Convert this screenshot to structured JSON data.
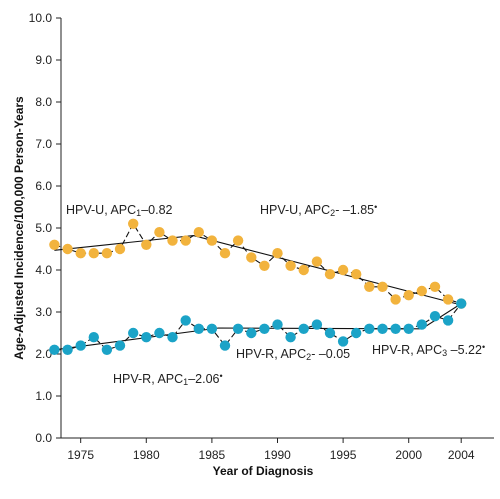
{
  "chart_data": {
    "type": "line",
    "xlabel": "Year of Diagnosis",
    "ylabel": "Age-Adjusted Incidence/100,000 Person-Years",
    "xlim": [
      1973.5,
      2006.5
    ],
    "ylim": [
      0,
      10
    ],
    "xticks": [
      1975,
      1980,
      1985,
      1990,
      1995,
      2000,
      2004
    ],
    "yticks": [
      "0.0",
      "1.0",
      "2.0",
      "3.0",
      "4.0",
      "5.0",
      "6.0",
      "7.0",
      "8.0",
      "9.0",
      "10.0"
    ],
    "grid": false,
    "x": [
      1973,
      1974,
      1975,
      1976,
      1977,
      1978,
      1979,
      1980,
      1981,
      1982,
      1983,
      1984,
      1985,
      1986,
      1987,
      1988,
      1989,
      1990,
      1991,
      1992,
      1993,
      1994,
      1995,
      1996,
      1997,
      1998,
      1999,
      2000,
      2001,
      2002,
      2003,
      2004
    ],
    "series": [
      {
        "name": "HPV-U",
        "color": "#f2b33d",
        "values": [
          4.6,
          4.5,
          4.4,
          4.4,
          4.4,
          4.5,
          5.1,
          4.6,
          4.9,
          4.7,
          4.7,
          4.9,
          4.7,
          4.4,
          4.7,
          4.3,
          4.1,
          4.4,
          4.1,
          4.0,
          4.2,
          3.9,
          4.0,
          3.9,
          3.6,
          3.6,
          3.3,
          3.4,
          3.5,
          3.6,
          3.3,
          3.2
        ],
        "fit": [
          [
            1973,
            4.47
          ],
          [
            1983.6,
            4.82
          ],
          [
            2003.6,
            3.2
          ]
        ]
      },
      {
        "name": "HPV-R",
        "color": "#1ba3c7",
        "values": [
          2.1,
          2.1,
          2.2,
          2.4,
          2.1,
          2.2,
          2.5,
          2.4,
          2.5,
          2.4,
          2.8,
          2.6,
          2.6,
          2.2,
          2.6,
          2.5,
          2.6,
          2.7,
          2.4,
          2.6,
          2.7,
          2.5,
          2.3,
          2.5,
          2.6,
          2.6,
          2.6,
          2.6,
          2.7,
          2.9,
          2.8,
          3.2
        ],
        "fit": [
          [
            1973,
            2.1
          ],
          [
            1985.5,
            2.62
          ],
          [
            2001,
            2.6
          ],
          [
            2004,
            3.2
          ]
        ]
      }
    ],
    "annotations": [
      {
        "id": "hpvu-1",
        "prefix": "HPV-U, APC",
        "sub": "1",
        "suffix": "–0.82",
        "star": ""
      },
      {
        "id": "hpvu-2",
        "prefix": "HPV-U, APC",
        "sub": "2",
        "suffix": "- –1.85",
        "star": "•"
      },
      {
        "id": "hpvr-1",
        "prefix": "HPV-R, APC",
        "sub": "1",
        "suffix": "–2.06",
        "star": "•"
      },
      {
        "id": "hpvr-2",
        "prefix": "HPV-R, APC",
        "sub": "2",
        "suffix": "- –0.05",
        "star": ""
      },
      {
        "id": "hpvr-3",
        "prefix": "HPV-R, APC",
        "sub": "3",
        "suffix": " –5.22",
        "star": "•"
      }
    ]
  }
}
